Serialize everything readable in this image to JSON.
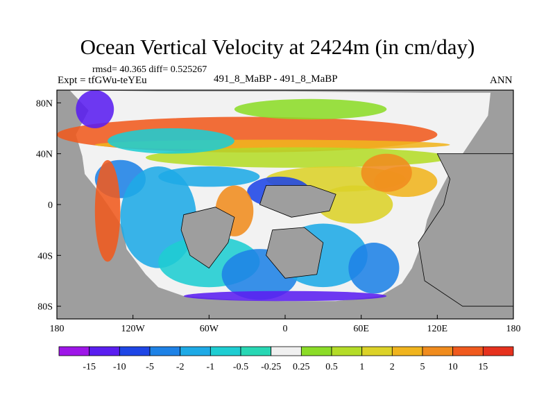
{
  "header": {
    "title": "Ocean Vertical Velocity at 2424m (in cm/day)",
    "stats": "rmsd= 40.365 diff= 0.525267",
    "experiment": "Expt = tfGWu-teYEu",
    "cases": "491_8_MaBP - 491_8_MaBP",
    "period": "ANN"
  },
  "colors": {
    "land": "#9e9e9e",
    "ocean_zero": "#f2f2f2",
    "frame": "#000000"
  },
  "chart_data": {
    "type": "heatmap",
    "title": "Ocean Vertical Velocity at 2424m (in cm/day)",
    "xlabel": "",
    "ylabel": "",
    "x_range": [
      -180,
      180
    ],
    "y_range": [
      -90,
      90
    ],
    "x_ticks": [
      {
        "value": -180,
        "label": "180"
      },
      {
        "value": -120,
        "label": "120W"
      },
      {
        "value": -60,
        "label": "60W"
      },
      {
        "value": 0,
        "label": "0"
      },
      {
        "value": 60,
        "label": "60E"
      },
      {
        "value": 120,
        "label": "120E"
      },
      {
        "value": 180,
        "label": "180"
      }
    ],
    "y_ticks": [
      {
        "value": 80,
        "label": "80N"
      },
      {
        "value": 40,
        "label": "40N"
      },
      {
        "value": 0,
        "label": "0"
      },
      {
        "value": -40,
        "label": "40S"
      },
      {
        "value": -80,
        "label": "80S"
      }
    ],
    "colorbar": {
      "levels": [
        "-15",
        "-10",
        "-5",
        "-2",
        "-1",
        "-0.5",
        "-0.25",
        "0.25",
        "0.5",
        "1",
        "2",
        "5",
        "10",
        "15"
      ],
      "colors": [
        "#9e16e8",
        "#5a1ef0",
        "#1e46e6",
        "#1e82e6",
        "#1eaae6",
        "#1ecdd2",
        "#28d7b4",
        "#f0f0f0",
        "#8cdc28",
        "#b4dc28",
        "#dcd228",
        "#f0b41e",
        "#f08c1e",
        "#f05a1e",
        "#e6321e"
      ]
    }
  }
}
